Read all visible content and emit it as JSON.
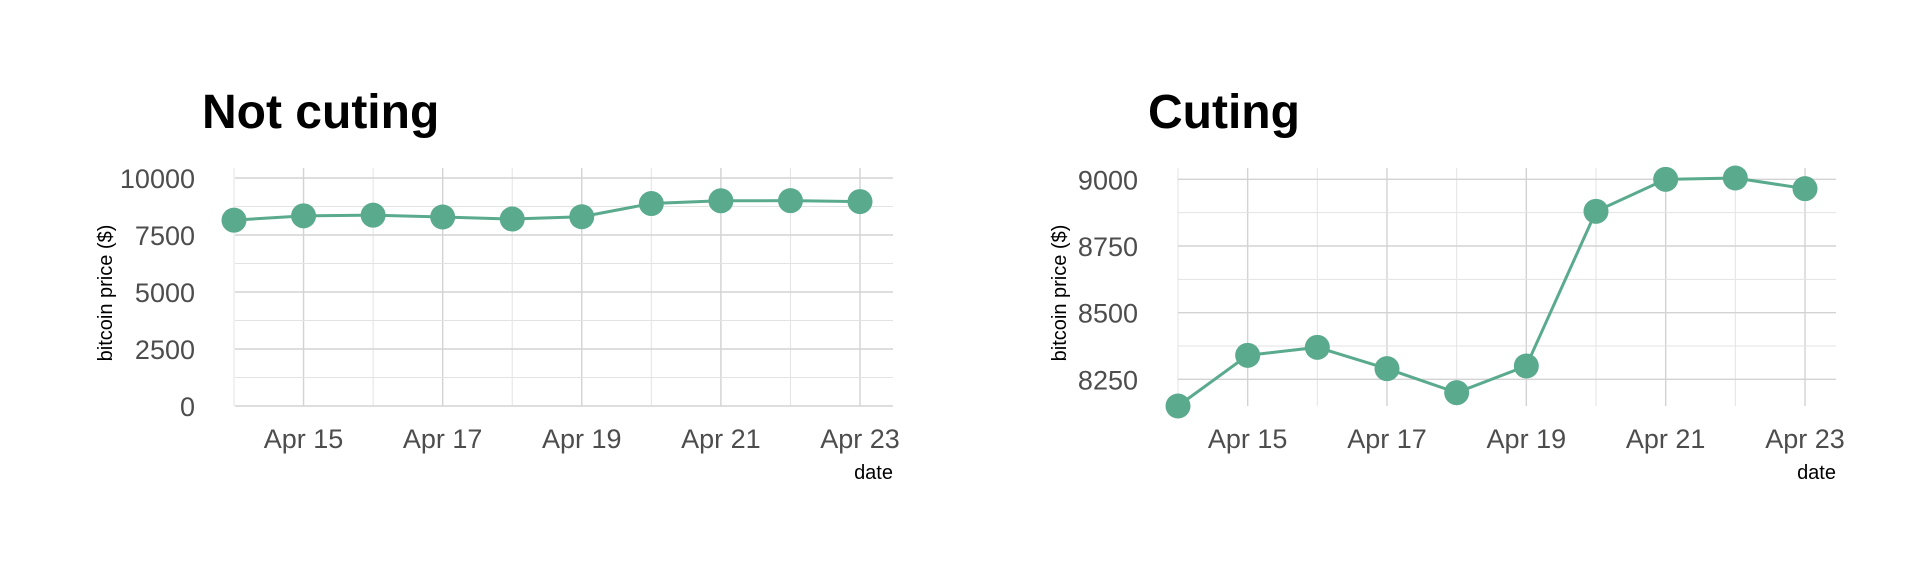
{
  "colors": {
    "series": "#5aaa8e",
    "grid": "#d3d3d3",
    "tick_text": "#4d4d4d"
  },
  "chart_data": [
    {
      "type": "line",
      "title": "Not cuting",
      "xlabel": "date",
      "ylabel": "bitcoin price ($)",
      "x": [
        "2020-04-14",
        "2020-04-15",
        "2020-04-16",
        "2020-04-17",
        "2020-04-18",
        "2020-04-19",
        "2020-04-20",
        "2020-04-21",
        "2020-04-22",
        "2020-04-23"
      ],
      "x_tick_labels": [
        "Apr 15",
        "Apr 17",
        "Apr 19",
        "Apr 21",
        "Apr 23"
      ],
      "y_tick_labels": [
        "0",
        "2500",
        "5000",
        "7500",
        "10000"
      ],
      "y_ticks": [
        0,
        2500,
        5000,
        7500,
        10000
      ],
      "ylim": [
        0,
        10000
      ],
      "xlim": [
        "2020-04-14",
        "2020-04-23"
      ],
      "grid": true,
      "series": [
        {
          "values": [
            8150,
            8340,
            8370,
            8290,
            8200,
            8300,
            8880,
            9000,
            9005,
            8965
          ]
        }
      ]
    },
    {
      "type": "line",
      "title": "Cuting",
      "xlabel": "date",
      "ylabel": "bitcoin price ($)",
      "x": [
        "2020-04-14",
        "2020-04-15",
        "2020-04-16",
        "2020-04-17",
        "2020-04-18",
        "2020-04-19",
        "2020-04-20",
        "2020-04-21",
        "2020-04-22",
        "2020-04-23"
      ],
      "x_tick_labels": [
        "Apr 15",
        "Apr 17",
        "Apr 19",
        "Apr 21",
        "Apr 23"
      ],
      "y_tick_labels": [
        "8250",
        "8500",
        "8750",
        "9000"
      ],
      "y_ticks": [
        8250,
        8500,
        8750,
        9000
      ],
      "ylim": [
        8150,
        9005
      ],
      "xlim": [
        "2020-04-14",
        "2020-04-23"
      ],
      "grid": true,
      "series": [
        {
          "values": [
            8150,
            8340,
            8370,
            8290,
            8200,
            8300,
            8880,
            9000,
            9005,
            8965
          ]
        }
      ]
    }
  ]
}
